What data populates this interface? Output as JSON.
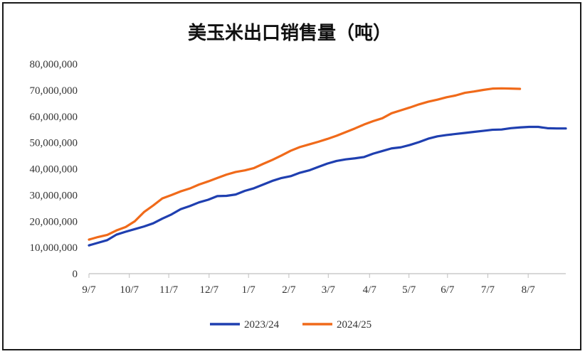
{
  "chart_data": {
    "type": "line",
    "title": "美玉米出口销售量（吨）",
    "xlabel": "",
    "ylabel": "",
    "ylim": [
      0,
      80000000
    ],
    "yticks": [
      0,
      10000000,
      20000000,
      30000000,
      40000000,
      50000000,
      60000000,
      70000000,
      80000000
    ],
    "ytick_labels": [
      "0",
      "10,000,000",
      "20,000,000",
      "30,000,000",
      "40,000,000",
      "50,000,000",
      "60,000,000",
      "70,000,000",
      "80,000,000"
    ],
    "xlim": [
      0,
      52
    ],
    "xticks": [
      0,
      4.4,
      8.7,
      13.1,
      17.4,
      21.8,
      26.1,
      30.6,
      34.9,
      39.1,
      43.5,
      47.9
    ],
    "xtick_labels": [
      "9/7",
      "10/7",
      "11/7",
      "12/7",
      "1/7",
      "2/7",
      "3/7",
      "4/7",
      "5/7",
      "6/7",
      "7/7",
      "8/7"
    ],
    "grid": false,
    "legend_position": "bottom",
    "series": [
      {
        "name": "2023/24",
        "color": "#1f3fb0",
        "x": [
          0,
          1,
          2,
          3,
          4,
          5,
          6,
          7,
          8,
          9,
          10,
          11,
          12,
          13,
          14,
          15,
          16,
          17,
          18,
          19,
          20,
          21,
          22,
          23,
          24,
          25,
          26,
          27,
          28,
          29,
          30,
          31,
          32,
          33,
          34,
          35,
          36,
          37,
          38,
          39,
          40,
          41,
          42,
          43,
          44,
          45,
          46,
          47,
          48,
          49,
          50,
          51,
          52
        ],
        "values": [
          10800000,
          11800000,
          12800000,
          14900000,
          16000000,
          17000000,
          18000000,
          19200000,
          21000000,
          22600000,
          24600000,
          25800000,
          27200000,
          28200000,
          29600000,
          29700000,
          30200000,
          31600000,
          32600000,
          34000000,
          35400000,
          36500000,
          37200000,
          38500000,
          39400000,
          40700000,
          42000000,
          43000000,
          43600000,
          44000000,
          44500000,
          45800000,
          46800000,
          47800000,
          48200000,
          49100000,
          50200000,
          51500000,
          52400000,
          52900000,
          53300000,
          53700000,
          54100000,
          54500000,
          54900000,
          55000000,
          55500000,
          55800000,
          56000000,
          56000000,
          55500000,
          55400000,
          55400000
        ]
      },
      {
        "name": "2024/25",
        "color": "#f06a1a",
        "x": [
          0,
          1,
          2,
          3,
          4,
          5,
          6,
          7,
          8,
          9,
          10,
          11,
          12,
          13,
          14,
          15,
          16,
          17,
          18,
          19,
          20,
          21,
          22,
          23,
          24,
          25,
          26,
          27,
          28,
          29,
          30,
          31,
          32,
          33,
          34,
          35,
          36,
          37,
          38,
          39,
          40,
          41,
          42,
          43,
          44,
          45,
          46,
          47
        ],
        "values": [
          13000000,
          14000000,
          14800000,
          16500000,
          17800000,
          20000000,
          23500000,
          26000000,
          28700000,
          30000000,
          31400000,
          32500000,
          34000000,
          35200000,
          36500000,
          37800000,
          38800000,
          39400000,
          40300000,
          41900000,
          43400000,
          45100000,
          46900000,
          48300000,
          49300000,
          50300000,
          51400000,
          52600000,
          54000000,
          55400000,
          56900000,
          58200000,
          59300000,
          61200000,
          62300000,
          63400000,
          64600000,
          65600000,
          66400000,
          67300000,
          68000000,
          69000000,
          69500000,
          70100000,
          70600000,
          70700000,
          70600000,
          70500000
        ]
      }
    ]
  }
}
